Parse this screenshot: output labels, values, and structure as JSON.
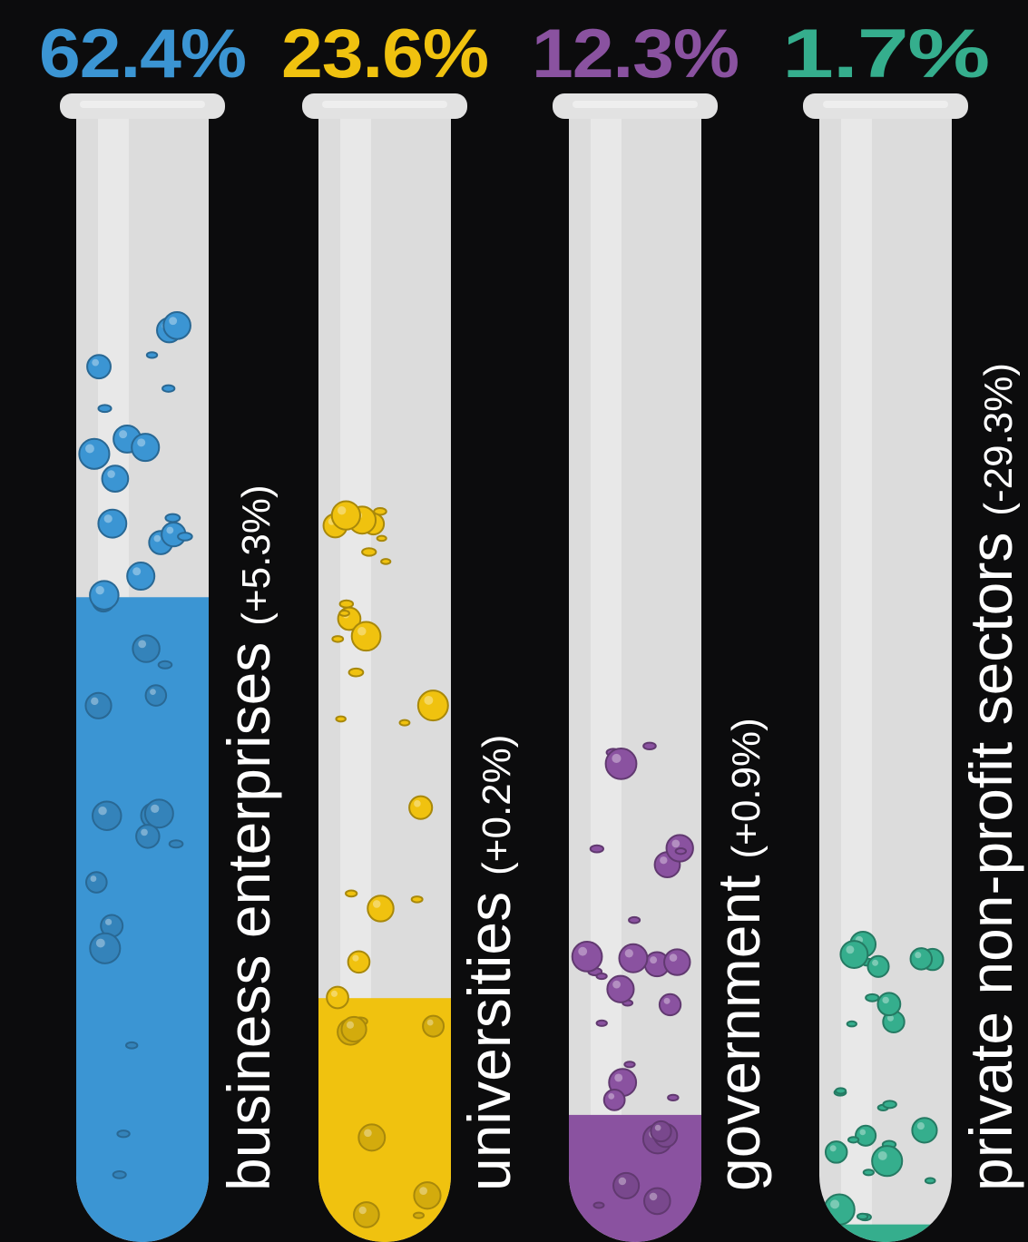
{
  "chart_data": {
    "type": "bar",
    "title": "",
    "xlabel": "",
    "ylabel": "",
    "ylim": [
      0,
      100
    ],
    "categories": [
      "business enterprises",
      "universities",
      "government",
      "private non-profit sectors"
    ],
    "values": [
      62.4,
      23.6,
      12.3,
      1.7
    ],
    "value_labels": [
      "62.4%",
      "23.6%",
      "12.3%",
      "1.7%"
    ],
    "changes": [
      "(+5.3%)",
      "(+0.2%)",
      "(+0.9%)",
      "(-29.3%)"
    ],
    "colors": [
      "#3b95d3",
      "#f0c20f",
      "#8a52a0",
      "#35ae8d"
    ],
    "grid": false,
    "legend": "none"
  }
}
